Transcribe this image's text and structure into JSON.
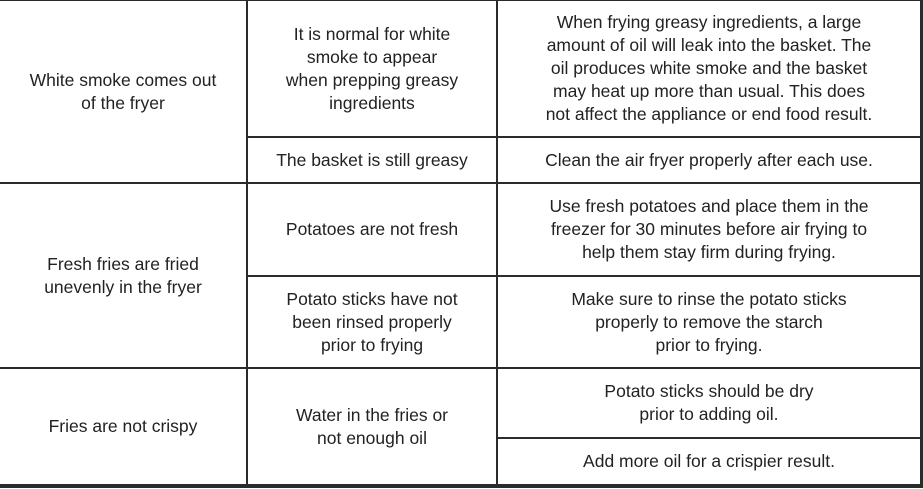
{
  "rows": [
    {
      "problem": "White smoke comes out\nof the fryer",
      "causes": [
        {
          "cause": "It is normal for white\nsmoke to appear\nwhen prepping greasy\ningredients",
          "solutions": [
            "When frying greasy ingredients, a large\namount of oil will leak into the basket. The\noil produces white smoke and the basket\nmay heat up more than usual. This does\nnot affect the appliance or end food result."
          ]
        },
        {
          "cause": "The basket is still greasy",
          "solutions": [
            "Clean the air fryer properly after each use."
          ]
        }
      ]
    },
    {
      "problem": "Fresh fries are fried\nunevenly in the fryer",
      "causes": [
        {
          "cause": "Potatoes are not fresh",
          "solutions": [
            "Use fresh potatoes and place them in the\nfreezer for 30 minutes before air frying to\nhelp them stay firm during frying."
          ]
        },
        {
          "cause": "Potato sticks have not\nbeen rinsed properly\nprior to frying",
          "solutions": [
            "Make sure to rinse the potato sticks\nproperly to remove the starch\nprior to frying."
          ]
        }
      ]
    },
    {
      "problem": "Fries are not crispy",
      "causes": [
        {
          "cause": "Water in the fries or\nnot enough oil",
          "solutions": [
            "Potato sticks should be dry\nprior to adding oil.",
            "Add more oil for a crispier result."
          ]
        }
      ]
    }
  ]
}
